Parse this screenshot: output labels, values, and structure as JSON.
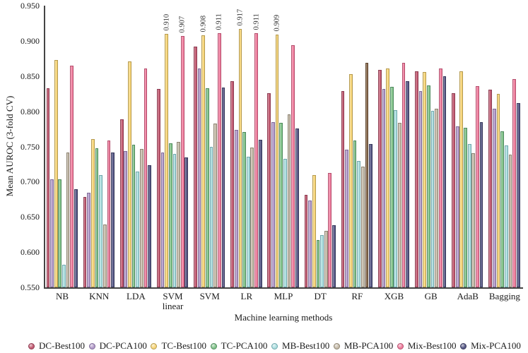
{
  "chart_data": {
    "type": "bar",
    "title": "",
    "xlabel": "Machine learning methods",
    "ylabel": "Mean AUROC (3-fold CV)",
    "ylim": [
      0.55,
      0.95
    ],
    "ytick_labels": [
      "0.550",
      "0.600",
      "0.650",
      "0.700",
      "0.750",
      "0.800",
      "0.850",
      "0.900",
      "0.950"
    ],
    "grid": false,
    "legend_position": "bottom",
    "categories": [
      "NB",
      "KNN",
      "LDA",
      "SVM\nlinear",
      "SVM",
      "LR",
      "MLP",
      "DT",
      "RF",
      "XGB",
      "GB",
      "AdaB",
      "Bagging"
    ],
    "series": [
      {
        "name": "DC-Best100",
        "color": "#c25b72",
        "border": "#8e3d52",
        "values": [
          0.833,
          0.678,
          0.789,
          0.832,
          0.892,
          0.843,
          0.826,
          0.681,
          0.829,
          0.859,
          0.857,
          0.826,
          0.831
        ]
      },
      {
        "name": "DC-PCA100",
        "color": "#b49dca",
        "border": "#7e6a97",
        "values": [
          0.703,
          0.684,
          0.743,
          0.741,
          0.861,
          0.774,
          0.785,
          0.673,
          0.745,
          0.832,
          0.829,
          0.779,
          0.804
        ]
      },
      {
        "name": "TC-Best100",
        "color": "#f7d67b",
        "border": "#b59a4d",
        "values": [
          0.873,
          0.761,
          0.871,
          0.91,
          0.908,
          0.917,
          0.909,
          0.709,
          0.853,
          0.861,
          0.856,
          0.857,
          0.825
        ]
      },
      {
        "name": "TC-PCA100",
        "color": "#84c48c",
        "border": "#4f8a5d",
        "values": [
          0.703,
          0.747,
          0.753,
          0.755,
          0.833,
          0.771,
          0.784,
          0.617,
          0.759,
          0.835,
          0.837,
          0.777,
          0.772
        ]
      },
      {
        "name": "MB-Best100",
        "color": "#aedfe0",
        "border": "#6fa6ab",
        "values": [
          0.582,
          0.709,
          0.714,
          0.739,
          0.749,
          0.735,
          0.732,
          0.624,
          0.729,
          0.802,
          0.801,
          0.754,
          0.752
        ]
      },
      {
        "name": "MB-PCA100",
        "color": "#c6bcab",
        "border": "#8c8270",
        "values": [
          0.741,
          0.639,
          0.746,
          0.757,
          0.783,
          0.748,
          0.796,
          0.63,
          0.721,
          0.784,
          0.804,
          0.74,
          0.738
        ]
      },
      {
        "name": "Mix-Best100",
        "color": "#ef7f9e",
        "border": "#b54f6e",
        "values": [
          0.865,
          0.759,
          0.861,
          0.907,
          0.911,
          0.911,
          0.894,
          0.712,
          0.869,
          0.869,
          0.861,
          0.836,
          0.846
        ]
      },
      {
        "name": "Mix-PCA100",
        "color": "#585a87",
        "border": "#38395c",
        "values": [
          0.689,
          0.741,
          0.723,
          0.734,
          0.834,
          0.76,
          0.776,
          0.638,
          0.754,
          0.843,
          0.85,
          0.785,
          0.812
        ]
      }
    ],
    "bar_labels": [
      {
        "category": "SVM\nlinear",
        "series": "TC-Best100",
        "text": "0.910"
      },
      {
        "category": "SVM\nlinear",
        "series": "Mix-Best100",
        "text": "0.907"
      },
      {
        "category": "SVM",
        "series": "TC-Best100",
        "text": "0.908"
      },
      {
        "category": "SVM",
        "series": "Mix-Best100",
        "text": "0.911"
      },
      {
        "category": "LR",
        "series": "TC-Best100",
        "text": "0.917"
      },
      {
        "category": "LR",
        "series": "Mix-Best100",
        "text": "0.911"
      },
      {
        "category": "MLP",
        "series": "TC-Best100",
        "text": "0.909"
      }
    ],
    "color_overrides": [
      {
        "category": "RF",
        "series": "Mix-Best100",
        "color": "#8a6b4e",
        "border": "#5c4530"
      }
    ]
  }
}
